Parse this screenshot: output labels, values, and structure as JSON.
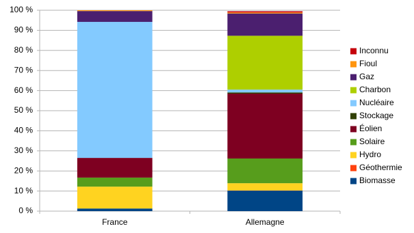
{
  "chart_data": {
    "type": "stacked-bar",
    "categories": [
      "France",
      "Allemagne"
    ],
    "series": [
      {
        "name": "Biomasse",
        "color": "#004586",
        "values": [
          1.3,
          10.2
        ]
      },
      {
        "name": "Géothermie",
        "color": "#ff420e",
        "values": [
          0,
          0.1
        ]
      },
      {
        "name": "Hydro",
        "color": "#ffd320",
        "values": [
          10.9,
          3.6
        ]
      },
      {
        "name": "Solaire",
        "color": "#579d1c",
        "values": [
          4.5,
          12.3
        ]
      },
      {
        "name": "Éolien",
        "color": "#7e0021",
        "values": [
          9.8,
          32.3
        ]
      },
      {
        "name": "Stockage",
        "color": "#314004",
        "values": [
          0,
          0.6
        ]
      },
      {
        "name": "Nucléaire",
        "color": "#83caff",
        "values": [
          67.7,
          1.4
        ]
      },
      {
        "name": "Charbon",
        "color": "#aecf00",
        "values": [
          0,
          26.8
        ]
      },
      {
        "name": "Gaz",
        "color": "#4b1f6f",
        "values": [
          5.4,
          11.1
        ]
      },
      {
        "name": "Fioul",
        "color": "#ff950e",
        "values": [
          0.4,
          0.5
        ]
      },
      {
        "name": "Inconnu",
        "color": "#c5000b",
        "values": [
          0,
          0.6
        ]
      }
    ],
    "ylim": [
      0,
      100
    ],
    "yticks": [
      {
        "value": 0,
        "label": "0 %"
      },
      {
        "value": 10,
        "label": "10 %"
      },
      {
        "value": 20,
        "label": "20 %"
      },
      {
        "value": 30,
        "label": "30 %"
      },
      {
        "value": 40,
        "label": "40 %"
      },
      {
        "value": 50,
        "label": "50 %"
      },
      {
        "value": 60,
        "label": "60 %"
      },
      {
        "value": 70,
        "label": "70 %"
      },
      {
        "value": 80,
        "label": "80 %"
      },
      {
        "value": 90,
        "label": "90 %"
      },
      {
        "value": 100,
        "label": "100 %"
      }
    ],
    "grid": true,
    "legend": "right"
  }
}
